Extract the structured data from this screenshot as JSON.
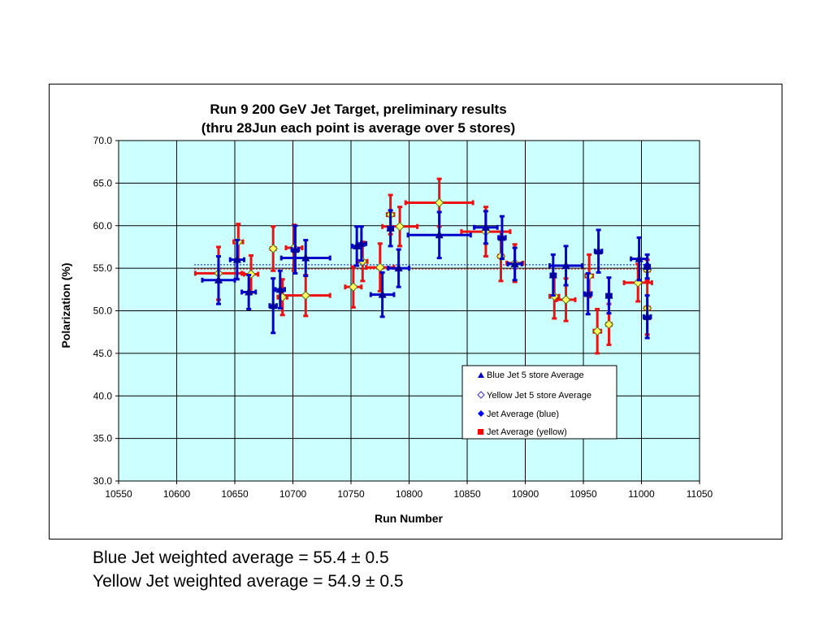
{
  "chart_data": {
    "type": "scatter",
    "title": "Run 9 200 GeV Jet Target, preliminary results",
    "subtitle": "(thru 28Jun each point is average over 5 stores)",
    "xlabel": "Run Number",
    "ylabel": "Polarization (%)",
    "xlim": [
      10550,
      11050
    ],
    "ylim": [
      30.0,
      70.0
    ],
    "xticks": [
      "10550",
      "10600",
      "10650",
      "10700",
      "10750",
      "10800",
      "10850",
      "10900",
      "10950",
      "11000",
      "11050"
    ],
    "yticks": [
      "30.0",
      "35.0",
      "40.0",
      "45.0",
      "50.0",
      "55.0",
      "60.0",
      "65.0",
      "70.0"
    ],
    "grid": true,
    "plot_background": "#ccffff",
    "legend_position": "lower-right",
    "legend": [
      {
        "label": "Blue Jet 5 store Average",
        "marker": "triangle",
        "color": "#0000cc"
      },
      {
        "label": "Yellow Jet 5 store Average",
        "marker": "diamond-open",
        "color": "#3333cc"
      },
      {
        "label": "Jet Average (blue)",
        "marker": "diamond",
        "color": "#0000ff"
      },
      {
        "label": "Jet Average (yellow)",
        "marker": "square",
        "color": "#ff0000"
      }
    ],
    "series": [
      {
        "name": "Blue Jet 5 store Average",
        "color": "#0000cc",
        "marker_color": "#000099",
        "points": [
          {
            "x": 10636,
            "y": 53.6,
            "yerr": 2.8,
            "xerr": 14
          },
          {
            "x": 10652,
            "y": 56.0,
            "yerr": 2.3,
            "xerr": 6
          },
          {
            "x": 10662,
            "y": 52.2,
            "yerr": 2.0,
            "xerr": 6
          },
          {
            "x": 10683,
            "y": 50.6,
            "yerr": 3.2,
            "xerr": 3
          },
          {
            "x": 10689,
            "y": 52.5,
            "yerr": 2.2,
            "xerr": 4
          },
          {
            "x": 10702,
            "y": 57.2,
            "yerr": 2.8,
            "xerr": 3
          },
          {
            "x": 10711,
            "y": 56.2,
            "yerr": 2.1,
            "xerr": 21
          },
          {
            "x": 10755,
            "y": 57.6,
            "yerr": 2.3,
            "xerr": 4
          },
          {
            "x": 10759,
            "y": 57.9,
            "yerr": 2.0,
            "xerr": 4
          },
          {
            "x": 10777,
            "y": 51.9,
            "yerr": 2.6,
            "xerr": 10
          },
          {
            "x": 10784,
            "y": 59.7,
            "yerr": 2.1,
            "xerr": 2
          },
          {
            "x": 10791,
            "y": 55.0,
            "yerr": 2.2,
            "xerr": 9
          },
          {
            "x": 10826,
            "y": 58.9,
            "yerr": 2.7,
            "xerr": 27
          },
          {
            "x": 10866,
            "y": 59.8,
            "yerr": 1.9,
            "xerr": 10
          },
          {
            "x": 10880,
            "y": 58.6,
            "yerr": 2.5,
            "xerr": 3
          },
          {
            "x": 10891,
            "y": 55.5,
            "yerr": 1.9,
            "xerr": 6
          },
          {
            "x": 10924,
            "y": 54.2,
            "yerr": 2.4,
            "xerr": 2
          },
          {
            "x": 10935,
            "y": 55.3,
            "yerr": 2.3,
            "xerr": 14
          },
          {
            "x": 10954,
            "y": 52.0,
            "yerr": 2.4,
            "xerr": 3
          },
          {
            "x": 10963,
            "y": 57.0,
            "yerr": 2.5,
            "xerr": 3
          },
          {
            "x": 10972,
            "y": 51.8,
            "yerr": 2.1,
            "xerr": 2
          },
          {
            "x": 10998,
            "y": 56.1,
            "yerr": 2.5,
            "xerr": 7
          },
          {
            "x": 11005,
            "y": 49.3,
            "yerr": 2.5,
            "xerr": 3
          },
          {
            "x": 11005,
            "y": 55.2,
            "yerr": 1.4,
            "xerr": 2
          }
        ]
      },
      {
        "name": "Yellow Jet 5 store Average",
        "color": "#ee1111",
        "marker_color": "#ffff66",
        "points": [
          {
            "x": 10636,
            "y": 54.4,
            "yerr": 3.1,
            "xerr": 20
          },
          {
            "x": 10653,
            "y": 58.1,
            "yerr": 2.1,
            "xerr": 4
          },
          {
            "x": 10664,
            "y": 54.3,
            "yerr": 2.2,
            "xerr": 6
          },
          {
            "x": 10683,
            "y": 57.3,
            "yerr": 2.6,
            "xerr": 2
          },
          {
            "x": 10691,
            "y": 51.6,
            "yerr": 2.1,
            "xerr": 4
          },
          {
            "x": 10701,
            "y": 57.4,
            "yerr": 2.7,
            "xerr": 7
          },
          {
            "x": 10711,
            "y": 51.8,
            "yerr": 2.4,
            "xerr": 21
          },
          {
            "x": 10752,
            "y": 52.8,
            "yerr": 2.4,
            "xerr": 7
          },
          {
            "x": 10760,
            "y": 55.8,
            "yerr": 2.3,
            "xerr": 4
          },
          {
            "x": 10775,
            "y": 55.1,
            "yerr": 2.8,
            "xerr": 12
          },
          {
            "x": 10784,
            "y": 61.3,
            "yerr": 2.3,
            "xerr": 3
          },
          {
            "x": 10792,
            "y": 59.9,
            "yerr": 2.3,
            "xerr": 15
          },
          {
            "x": 10826,
            "y": 62.7,
            "yerr": 2.8,
            "xerr": 29
          },
          {
            "x": 10866,
            "y": 59.3,
            "yerr": 2.9,
            "xerr": 21
          },
          {
            "x": 10879,
            "y": 56.4,
            "yerr": 2.9,
            "xerr": 2
          },
          {
            "x": 10891,
            "y": 55.6,
            "yerr": 2.2,
            "xerr": 7
          },
          {
            "x": 10925,
            "y": 51.7,
            "yerr": 2.6,
            "xerr": 4
          },
          {
            "x": 10935,
            "y": 51.3,
            "yerr": 2.5,
            "xerr": 8
          },
          {
            "x": 10955,
            "y": 54.1,
            "yerr": 2.5,
            "xerr": 3
          },
          {
            "x": 10962,
            "y": 47.6,
            "yerr": 2.6,
            "xerr": 3
          },
          {
            "x": 10972,
            "y": 48.4,
            "yerr": 2.4,
            "xerr": 2
          },
          {
            "x": 10997,
            "y": 53.3,
            "yerr": 2.2,
            "xerr": 12
          },
          {
            "x": 11005,
            "y": 50.3,
            "yerr": 3.1,
            "xerr": 2
          },
          {
            "x": 11005,
            "y": 54.8,
            "yerr": 1.2,
            "xerr": 2
          }
        ]
      },
      {
        "name": "Jet Average (blue)",
        "color": "#0000ff",
        "y": 55.4,
        "x_range": [
          10615,
          11007
        ]
      },
      {
        "name": "Jet Average (yellow)",
        "color": "#ff0000",
        "y": 54.9,
        "x_range": [
          10615,
          11007
        ]
      }
    ]
  },
  "captions": {
    "blue": "Blue Jet weighted average = 55.4 ± 0.5",
    "yellow": "Yellow Jet weighted average = 54.9 ± 0.5"
  }
}
